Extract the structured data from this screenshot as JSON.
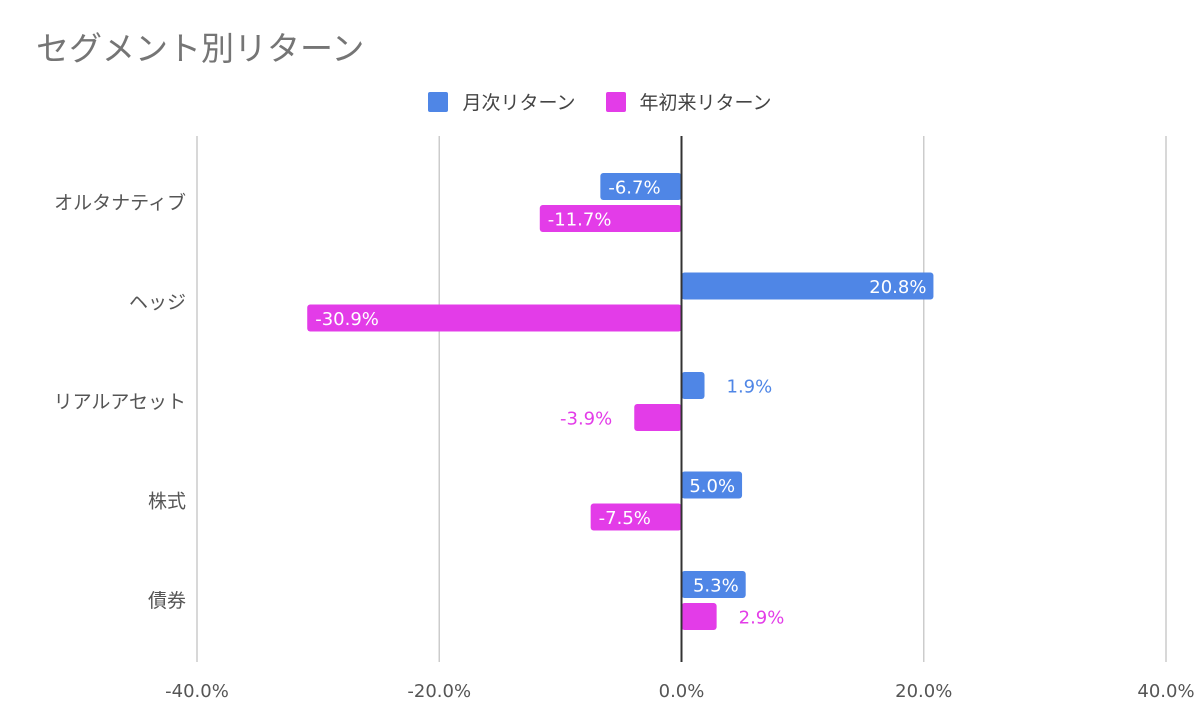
{
  "chart_data": {
    "type": "bar",
    "orientation": "horizontal",
    "title": "セグメント別リターン",
    "categories": [
      "オルタナティブ",
      "ヘッジ",
      "リアルアセット",
      "株式",
      "債券"
    ],
    "series": [
      {
        "name": "月次リターン",
        "color": "#4f86e6",
        "values": [
          -6.7,
          20.8,
          1.9,
          5.0,
          5.3
        ]
      },
      {
        "name": "年初来リターン",
        "color": "#e33ce8",
        "values": [
          -11.7,
          -30.9,
          -3.9,
          -7.5,
          2.9
        ]
      }
    ],
    "data_labels": [
      [
        "-6.7%",
        "20.8%",
        "1.9%",
        "5.0%",
        "5.3%"
      ],
      [
        "-11.7%",
        "-30.9%",
        "-3.9%",
        "-7.5%",
        "2.9%"
      ]
    ],
    "x_ticks": [
      "-40.0%",
      "-20.0%",
      "0.0%",
      "20.0%",
      "40.0%"
    ],
    "xlim": [
      -40,
      40
    ],
    "grid": true,
    "legend_position": "top"
  }
}
